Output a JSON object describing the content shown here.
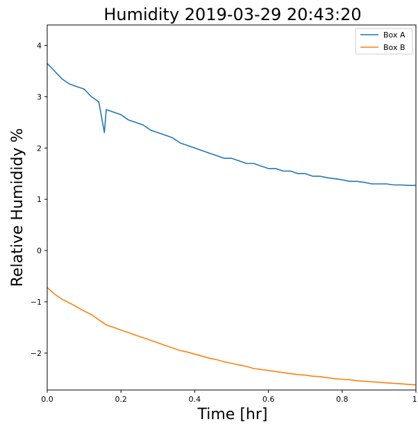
{
  "chart_data": {
    "type": "line",
    "title": "Humidity 2019-03-29 20:43:20",
    "xlabel": "Time [hr]",
    "ylabel": "Relative Humididy %",
    "xlim": [
      0.0,
      1.0
    ],
    "ylim": [
      -2.72,
      4.4
    ],
    "xticks": [
      0.0,
      0.2,
      0.4,
      0.6,
      0.8,
      1.0
    ],
    "xtick_labels": [
      "0.0",
      "0.2",
      "0.4",
      "0.6",
      "0.8",
      "1."
    ],
    "yticks": [
      -2,
      -1,
      0,
      1,
      2,
      3,
      4
    ],
    "ytick_labels": [
      "−2",
      "−1",
      "0",
      "1",
      "2",
      "3",
      "4"
    ],
    "grid": false,
    "legend_position": "top-right",
    "series": [
      {
        "name": "Box A",
        "color": "#1f77b4",
        "x": [
          0.0,
          0.02,
          0.04,
          0.06,
          0.08,
          0.1,
          0.12,
          0.14,
          0.155,
          0.16,
          0.18,
          0.2,
          0.22,
          0.24,
          0.26,
          0.28,
          0.3,
          0.32,
          0.34,
          0.36,
          0.38,
          0.4,
          0.42,
          0.44,
          0.46,
          0.48,
          0.5,
          0.52,
          0.54,
          0.56,
          0.58,
          0.6,
          0.62,
          0.64,
          0.66,
          0.68,
          0.7,
          0.72,
          0.74,
          0.76,
          0.78,
          0.8,
          0.82,
          0.84,
          0.86,
          0.88,
          0.9,
          0.92,
          0.94,
          0.96,
          0.98,
          1.0
        ],
        "y": [
          3.65,
          3.5,
          3.35,
          3.25,
          3.2,
          3.15,
          3.0,
          2.9,
          2.3,
          2.75,
          2.7,
          2.65,
          2.55,
          2.5,
          2.45,
          2.35,
          2.3,
          2.25,
          2.2,
          2.1,
          2.05,
          2.0,
          1.95,
          1.9,
          1.85,
          1.8,
          1.8,
          1.75,
          1.7,
          1.7,
          1.65,
          1.6,
          1.6,
          1.55,
          1.55,
          1.5,
          1.5,
          1.45,
          1.45,
          1.42,
          1.4,
          1.38,
          1.35,
          1.35,
          1.33,
          1.3,
          1.3,
          1.3,
          1.28,
          1.28,
          1.27,
          1.27
        ]
      },
      {
        "name": "Box B",
        "color": "#ff7f0e",
        "x": [
          0.0,
          0.02,
          0.04,
          0.06,
          0.08,
          0.1,
          0.12,
          0.14,
          0.16,
          0.18,
          0.2,
          0.22,
          0.24,
          0.26,
          0.28,
          0.3,
          0.32,
          0.34,
          0.36,
          0.38,
          0.4,
          0.42,
          0.44,
          0.46,
          0.48,
          0.5,
          0.52,
          0.54,
          0.56,
          0.58,
          0.6,
          0.62,
          0.64,
          0.66,
          0.68,
          0.7,
          0.72,
          0.74,
          0.76,
          0.78,
          0.8,
          0.82,
          0.84,
          0.86,
          0.88,
          0.9,
          0.92,
          0.94,
          0.96,
          0.98,
          1.0
        ],
        "y": [
          -0.72,
          -0.85,
          -0.95,
          -1.02,
          -1.1,
          -1.18,
          -1.25,
          -1.35,
          -1.45,
          -1.5,
          -1.55,
          -1.6,
          -1.65,
          -1.7,
          -1.75,
          -1.8,
          -1.85,
          -1.9,
          -1.95,
          -1.98,
          -2.02,
          -2.06,
          -2.1,
          -2.13,
          -2.17,
          -2.2,
          -2.23,
          -2.26,
          -2.3,
          -2.32,
          -2.34,
          -2.36,
          -2.38,
          -2.4,
          -2.42,
          -2.43,
          -2.45,
          -2.46,
          -2.48,
          -2.5,
          -2.51,
          -2.52,
          -2.54,
          -2.55,
          -2.56,
          -2.57,
          -2.58,
          -2.59,
          -2.6,
          -2.61,
          -2.62
        ]
      }
    ]
  }
}
